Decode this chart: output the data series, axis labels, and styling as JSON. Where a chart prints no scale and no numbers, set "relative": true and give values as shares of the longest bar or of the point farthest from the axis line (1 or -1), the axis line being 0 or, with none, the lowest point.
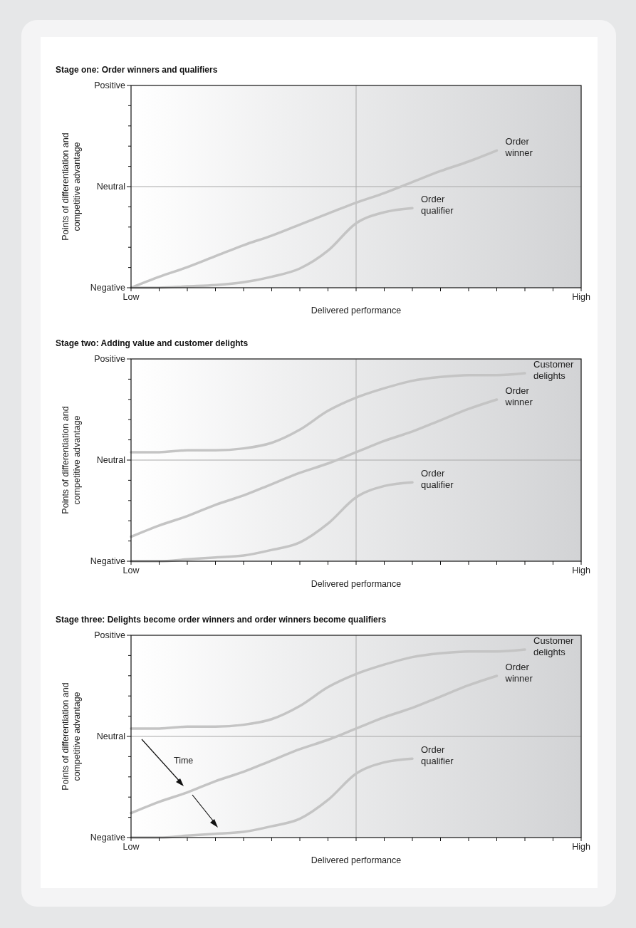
{
  "chart_data": [
    {
      "type": "line",
      "title": "Stage one: Order winners and qualifiers",
      "xlabel": "Delivered performance",
      "ylabel": "Points of differentiation and competitive advantage",
      "relative": true,
      "categories": [
        "Low",
        null,
        null,
        null,
        null,
        null,
        null,
        null,
        null,
        null,
        null,
        null,
        null,
        null,
        null,
        null,
        "High"
      ],
      "annotations": [
        "Positive",
        "Negative"
      ],
      "ref_lines": [
        {
          "axis": "y",
          "value": 0.737,
          "color": "#a8a8a8",
          "label": "Neutral"
        }
      ],
      "series": [
        {
          "name": "Order winner",
          "color": "#c4c4c4",
          "values": [
            0,
            0.08,
            0.15,
            0.23,
            0.31,
            0.38,
            0.46,
            0.54,
            0.62,
            0.69,
            0.77,
            0.85,
            0.92,
            1,
            null,
            null,
            null
          ]
        },
        {
          "name": "Order qualifier",
          "color": "#c4c4c4",
          "values": [
            0,
            0,
            0.01,
            0.02,
            0.04,
            0.08,
            0.14,
            0.27,
            0.47,
            0.55,
            0.58,
            null,
            null,
            null,
            null,
            null,
            null
          ]
        }
      ]
    },
    {
      "type": "line",
      "title": "Stage two: Adding value and customer delights",
      "xlabel": "Delivered performance",
      "ylabel": "Points of differentiation and competitive advantage",
      "relative": true,
      "categories": [
        "Low",
        null,
        null,
        null,
        null,
        null,
        null,
        null,
        null,
        null,
        null,
        null,
        null,
        null,
        null,
        null,
        "High"
      ],
      "annotations": [
        "Positive",
        "Negative"
      ],
      "ref_lines": [
        {
          "axis": "y",
          "value": 0.538,
          "color": "#a8a8a8",
          "label": "Neutral"
        }
      ],
      "series": [
        {
          "name": "Customer delights",
          "color": "#c4c4c4",
          "values": [
            0.58,
            0.58,
            0.59,
            0.59,
            0.6,
            0.63,
            0.7,
            0.8,
            0.87,
            0.92,
            0.96,
            0.98,
            0.99,
            0.99,
            1,
            null,
            null
          ]
        },
        {
          "name": "Order winner",
          "color": "#c4c4c4",
          "values": [
            0.13,
            0.19,
            0.24,
            0.3,
            0.35,
            0.41,
            0.47,
            0.52,
            0.58,
            0.64,
            0.69,
            0.75,
            0.81,
            0.86,
            null,
            null,
            null
          ]
        },
        {
          "name": "Order qualifier",
          "color": "#c4c4c4",
          "values": [
            0,
            0,
            0.01,
            0.02,
            0.03,
            0.06,
            0.1,
            0.2,
            0.34,
            0.4,
            0.42,
            null,
            null,
            null,
            null,
            null,
            null
          ]
        }
      ]
    },
    {
      "type": "line",
      "title": "Stage three: Delights become order winners and order winners become qualifiers",
      "xlabel": "Delivered performance",
      "ylabel": "Points of differentiation and competitive advantage",
      "relative": true,
      "categories": [
        "Low",
        null,
        null,
        null,
        null,
        null,
        null,
        null,
        null,
        null,
        null,
        null,
        null,
        null,
        null,
        null,
        "High"
      ],
      "ref_lines": [
        {
          "axis": "y",
          "value": 0.538,
          "color": "#a8a8a8",
          "label": "Neutral"
        }
      ],
      "annotations": [
        "Positive",
        "Negative",
        "Time"
      ],
      "series": [
        {
          "name": "Customer delights",
          "color": "#c4c4c4",
          "values": [
            0.58,
            0.58,
            0.59,
            0.59,
            0.6,
            0.63,
            0.7,
            0.8,
            0.87,
            0.92,
            0.96,
            0.98,
            0.99,
            0.99,
            1,
            null,
            null
          ]
        },
        {
          "name": "Order winner",
          "color": "#c4c4c4",
          "values": [
            0.13,
            0.19,
            0.24,
            0.3,
            0.35,
            0.41,
            0.47,
            0.52,
            0.58,
            0.64,
            0.69,
            0.75,
            0.81,
            0.86,
            null,
            null,
            null
          ]
        },
        {
          "name": "Order qualifier",
          "color": "#c4c4c4",
          "values": [
            0,
            0,
            0.01,
            0.02,
            0.03,
            0.06,
            0.1,
            0.2,
            0.34,
            0.4,
            0.42,
            null,
            null,
            null,
            null,
            null,
            null
          ]
        }
      ]
    }
  ]
}
